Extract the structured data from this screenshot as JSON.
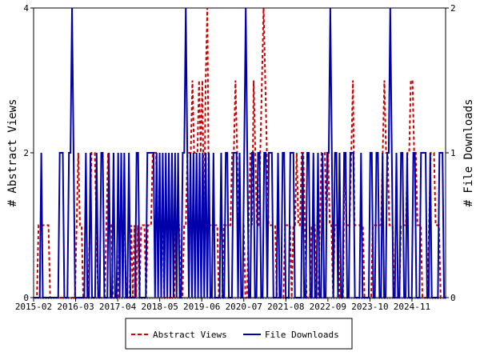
{
  "chart_data": {
    "type": "line",
    "x_labels": [
      "2015-02",
      "2016-03",
      "2017-04",
      "2018-05",
      "2019-06",
      "2020-07",
      "2021-08",
      "2022-09",
      "2023-10",
      "2024-11"
    ],
    "left_axis": {
      "label": "# Abstract Views",
      "ylim": [
        0,
        4
      ],
      "ticks": [
        "0",
        "2",
        "4"
      ]
    },
    "right_axis": {
      "label": "# File Downloads",
      "ylim": [
        0,
        2
      ],
      "ticks": [
        "0",
        "1",
        "2"
      ]
    },
    "legend_position": "bottom",
    "grid": false,
    "series": [
      {
        "name": "Abstract Views",
        "axis": "left",
        "color": "#cc0000",
        "dash": true,
        "values": [
          0,
          0,
          0,
          1,
          1,
          1,
          1,
          1,
          1,
          1,
          0,
          0,
          0,
          0,
          0,
          0,
          0,
          0,
          0,
          0,
          0,
          0,
          0,
          0,
          0,
          0,
          1,
          2,
          1,
          1,
          0,
          0,
          0,
          0,
          1,
          2,
          2,
          2,
          1,
          0,
          0,
          0,
          0,
          0,
          1,
          2,
          1,
          1,
          0,
          0,
          0,
          0,
          1,
          1,
          1,
          1,
          0,
          0,
          0,
          1,
          0,
          1,
          0,
          1,
          0,
          1,
          1,
          1,
          0,
          1,
          1,
          1,
          2,
          2,
          2,
          1,
          1,
          1,
          1,
          0,
          0,
          0,
          0,
          0,
          0,
          0,
          1,
          1,
          1,
          0,
          0,
          1,
          1,
          2,
          2,
          2,
          3,
          2,
          2,
          2,
          3,
          2,
          3,
          1,
          3,
          4,
          1,
          1,
          1,
          1,
          1,
          1,
          0,
          0,
          0,
          1,
          1,
          1,
          1,
          1,
          2,
          2,
          3,
          2,
          1,
          1,
          1,
          1,
          0,
          0,
          1,
          2,
          1,
          3,
          2,
          1,
          1,
          2,
          3,
          4,
          3,
          2,
          1,
          1,
          1,
          1,
          1,
          0,
          0,
          0,
          0,
          0,
          1,
          1,
          1,
          1,
          0,
          1,
          1,
          2,
          1,
          1,
          2,
          2,
          1,
          0,
          0,
          0,
          1,
          1,
          1,
          0,
          0,
          1,
          2,
          2,
          2,
          1,
          2,
          1,
          1,
          0,
          1,
          1,
          1,
          0,
          0,
          0,
          2,
          1,
          1,
          1,
          2,
          3,
          1,
          1,
          1,
          1,
          1,
          1,
          0,
          0,
          0,
          0,
          0,
          1,
          1,
          1,
          1,
          1,
          1,
          2,
          3,
          2,
          2,
          1,
          1,
          1,
          0,
          0,
          0,
          0,
          1,
          1,
          1,
          1,
          2,
          2,
          3,
          3,
          2,
          2,
          1,
          1,
          1,
          0,
          0,
          0,
          0,
          1,
          2,
          2,
          2,
          1,
          1,
          1,
          0,
          0,
          0,
          0
        ]
      },
      {
        "name": "File Downloads",
        "axis": "right",
        "color": "#0000aa",
        "dash": false,
        "values": [
          0,
          0,
          0,
          0,
          0,
          1,
          0,
          0,
          0,
          0,
          0,
          0,
          0,
          0,
          0,
          0,
          0,
          1,
          1,
          1,
          0,
          0,
          0,
          1,
          1,
          2,
          1,
          0,
          0,
          0,
          0,
          0,
          0,
          0,
          1,
          0,
          0,
          1,
          0,
          0,
          0,
          1,
          0,
          0,
          1,
          1,
          0,
          0,
          0,
          1,
          0,
          0,
          1,
          0,
          0,
          1,
          0,
          1,
          0,
          1,
          0,
          0,
          1,
          0,
          0,
          0,
          0,
          1,
          1,
          0,
          0,
          0,
          0,
          0,
          1,
          1,
          1,
          1,
          1,
          0,
          1,
          0,
          1,
          0,
          1,
          0,
          1,
          0,
          1,
          0,
          1,
          0,
          1,
          0,
          1,
          0,
          0,
          1,
          1,
          2,
          1,
          0,
          1,
          0,
          1,
          0,
          1,
          0,
          1,
          0,
          1,
          0,
          1,
          0,
          1,
          0,
          0,
          1,
          0,
          0,
          0,
          0,
          1,
          0,
          0,
          1,
          1,
          0,
          0,
          0,
          1,
          1,
          1,
          0,
          1,
          0,
          0,
          1,
          2,
          1,
          0,
          0,
          1,
          1,
          0,
          0,
          1,
          1,
          0,
          0,
          1,
          1,
          0,
          1,
          1,
          1,
          0,
          0,
          0,
          1,
          0,
          0,
          1,
          1,
          0,
          0,
          0,
          1,
          1,
          1,
          0,
          0,
          0,
          0,
          0,
          1,
          0,
          0,
          1,
          1,
          0,
          0,
          1,
          0,
          0,
          1,
          0,
          0,
          1,
          0,
          0,
          1,
          1,
          2,
          1,
          0,
          1,
          1,
          0,
          1,
          0,
          0,
          1,
          1,
          0,
          0,
          1,
          1,
          1,
          0,
          0,
          0,
          0,
          1,
          0,
          0,
          0,
          0,
          0,
          1,
          1,
          0,
          0,
          1,
          1,
          0,
          0,
          1,
          0,
          0,
          1,
          1,
          2,
          1,
          0,
          0,
          1,
          0,
          0,
          1,
          1,
          0,
          0,
          1,
          0,
          0,
          0,
          1,
          1,
          0,
          0,
          0,
          1,
          1,
          1,
          1,
          0,
          0,
          1,
          0,
          0,
          0,
          0,
          0,
          1,
          1,
          1,
          0,
          0
        ]
      }
    ]
  }
}
